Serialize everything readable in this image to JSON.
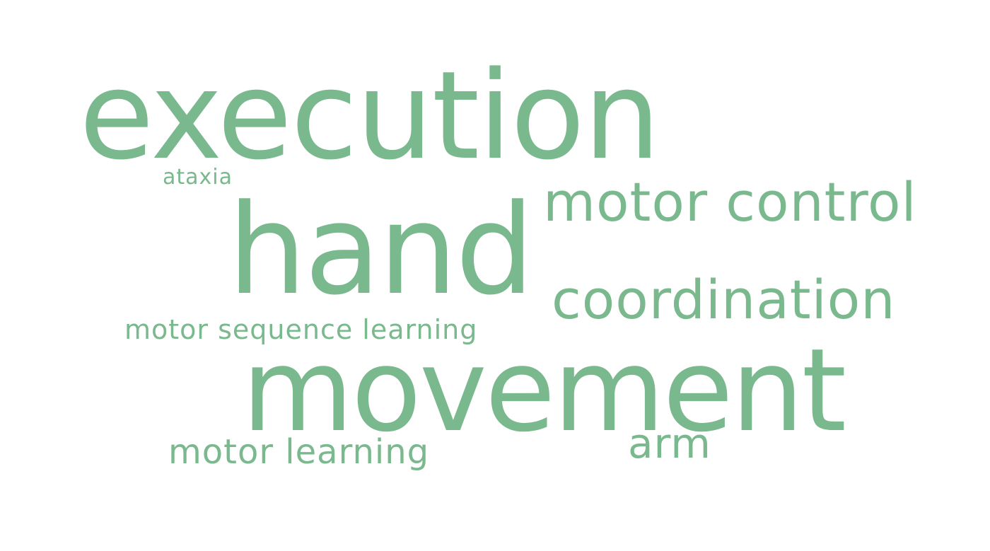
{
  "word_cloud": {
    "color": "#7ab88d",
    "words": [
      {
        "text": "execution"
      },
      {
        "text": "hand"
      },
      {
        "text": "movement"
      },
      {
        "text": "motor control"
      },
      {
        "text": "coordination"
      },
      {
        "text": "ataxia"
      },
      {
        "text": "motor sequence learning"
      },
      {
        "text": "motor learning"
      },
      {
        "text": "arm"
      }
    ]
  }
}
